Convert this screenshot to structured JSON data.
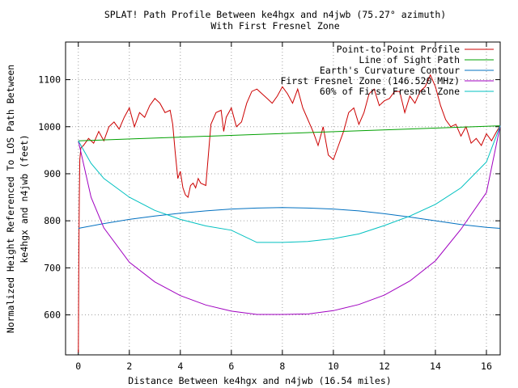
{
  "chart_data": {
    "type": "line",
    "title": "SPLAT! Path Profile Between ke4hgx and n4jwb (75.27° azimuth)",
    "subtitle": "With First Fresnel Zone",
    "xlabel": "Distance Between ke4hgx and n4jwb (16.54 miles)",
    "ylabel_line1": "Normalized Height Referenced To LOS Path Between",
    "ylabel_line2": "ke4hgx and n4jwb (feet)",
    "xlim": [
      -0.5,
      16.54
    ],
    "ylim": [
      515,
      1180
    ],
    "x_ticks": [
      0,
      2,
      4,
      6,
      8,
      10,
      12,
      14,
      16
    ],
    "y_ticks": [
      600,
      700,
      800,
      900,
      1000,
      1100
    ],
    "grid": true,
    "legend_position": "top-right",
    "series": [
      {
        "name": "Point-to-Point Profile",
        "color": "#cc0000",
        "x": [
          0,
          0.02,
          0.04,
          0.06,
          0.1,
          0.2,
          0.4,
          0.6,
          0.8,
          1.0,
          1.2,
          1.4,
          1.6,
          1.8,
          2.0,
          2.2,
          2.4,
          2.6,
          2.8,
          3.0,
          3.2,
          3.4,
          3.6,
          3.7,
          3.8,
          3.9,
          4.0,
          4.1,
          4.2,
          4.3,
          4.4,
          4.5,
          4.6,
          4.7,
          4.8,
          5.0,
          5.2,
          5.4,
          5.6,
          5.7,
          5.8,
          6.0,
          6.2,
          6.4,
          6.6,
          6.8,
          7.0,
          7.2,
          7.4,
          7.6,
          7.8,
          8.0,
          8.2,
          8.4,
          8.6,
          8.8,
          9.0,
          9.2,
          9.4,
          9.6,
          9.8,
          10.0,
          10.2,
          10.4,
          10.6,
          10.8,
          11.0,
          11.2,
          11.4,
          11.6,
          11.8,
          12.0,
          12.2,
          12.4,
          12.6,
          12.8,
          13.0,
          13.2,
          13.4,
          13.6,
          13.8,
          14.0,
          14.2,
          14.4,
          14.6,
          14.8,
          15.0,
          15.2,
          15.4,
          15.6,
          15.8,
          16.0,
          16.2,
          16.4,
          16.54
        ],
        "y": [
          520,
          720,
          850,
          930,
          955,
          960,
          975,
          965,
          990,
          970,
          1000,
          1010,
          995,
          1020,
          1040,
          1000,
          1030,
          1020,
          1045,
          1060,
          1050,
          1030,
          1035,
          1005,
          945,
          890,
          905,
          870,
          855,
          850,
          875,
          880,
          870,
          890,
          880,
          875,
          1005,
          1030,
          1035,
          990,
          1020,
          1040,
          1000,
          1010,
          1050,
          1075,
          1080,
          1070,
          1060,
          1050,
          1065,
          1085,
          1070,
          1050,
          1080,
          1040,
          1015,
          990,
          960,
          1000,
          940,
          930,
          960,
          990,
          1030,
          1040,
          1005,
          1030,
          1070,
          1080,
          1045,
          1055,
          1060,
          1075,
          1075,
          1030,
          1065,
          1050,
          1075,
          1085,
          1110,
          1085,
          1045,
          1015,
          1000,
          1005,
          980,
          1000,
          965,
          975,
          960,
          985,
          970,
          990,
          1002
        ]
      },
      {
        "name": "Line of Sight Path",
        "color": "#00a000",
        "x": [
          0,
          16.54
        ],
        "y": [
          970,
          1002
        ]
      },
      {
        "name": "Earth's Curvature Contour",
        "color": "#0070c0",
        "x": [
          0,
          1,
          2,
          3,
          4,
          5,
          6,
          7,
          8,
          9,
          10,
          11,
          12,
          13,
          14,
          15,
          16,
          16.54
        ],
        "y": [
          784,
          794,
          803,
          810,
          816,
          821,
          825,
          827,
          828,
          827,
          825,
          821,
          815,
          808,
          800,
          792,
          786,
          784
        ]
      },
      {
        "name": "First Fresnel Zone (146.520 MHz)",
        "color": "#a000c0",
        "x": [
          0,
          0.5,
          1,
          2,
          3,
          4,
          5,
          6,
          7,
          8,
          9,
          10,
          11,
          12,
          13,
          14,
          15,
          16,
          16.54
        ],
        "y": [
          970,
          850,
          785,
          712,
          670,
          641,
          621,
          608,
          601,
          601,
          602,
          609,
          622,
          642,
          672,
          715,
          782,
          860,
          1002
        ]
      },
      {
        "name": "60% of First Fresnel Zone",
        "color": "#00c0c0",
        "x": [
          0,
          0.5,
          1,
          2,
          3,
          4,
          5,
          6,
          7,
          8,
          9,
          10,
          11,
          12,
          13,
          14,
          15,
          16,
          16.54
        ],
        "y": [
          970,
          922,
          890,
          850,
          822,
          803,
          789,
          780,
          754,
          754,
          756,
          762,
          772,
          790,
          810,
          835,
          870,
          925,
          1002
        ]
      }
    ]
  }
}
